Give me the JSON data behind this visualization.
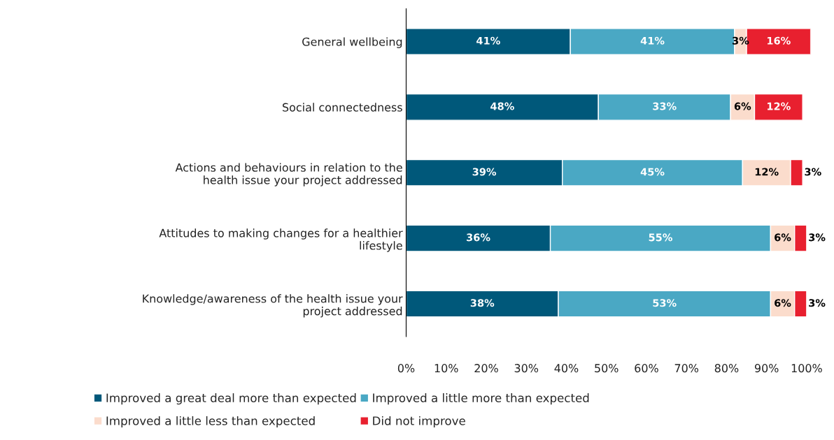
{
  "chart_data": {
    "type": "bar",
    "orientation": "horizontal",
    "stacked": true,
    "data_labels": true,
    "legend": "bottom",
    "grid": false,
    "categories": [
      "General wellbeing",
      "Social connectedness",
      "Actions and behaviours in relation to the health issue your project addressed",
      "Attitudes to making changes for a healthier lifestyle",
      "Knowledge/awareness of the health issue your project addressed"
    ],
    "series": [
      {
        "name": "Improved a great deal more than expected",
        "color": "#00587a",
        "values": [
          41,
          48,
          39,
          36,
          38
        ],
        "value_labels": [
          "41%",
          "48%",
          "39%",
          "36%",
          "38%"
        ]
      },
      {
        "name": "Improved a little more than expected",
        "color": "#4aa8c4",
        "values": [
          41,
          33,
          45,
          55,
          53
        ],
        "value_labels": [
          "41%",
          "33%",
          "45%",
          "55%",
          "53%"
        ]
      },
      {
        "name": "Improved a little less than expected",
        "color": "#fbdccc",
        "values": [
          3,
          6,
          12,
          6,
          6
        ],
        "value_labels": [
          "3%",
          "6%",
          "12%",
          "6%",
          "6%"
        ]
      },
      {
        "name": "Did not improve",
        "color": "#e8202f",
        "values": [
          16,
          12,
          3,
          3,
          3
        ],
        "value_labels": [
          "16%",
          "12%",
          "3%",
          "3%",
          "3%"
        ]
      }
    ],
    "xlim": [
      0,
      101
    ],
    "xticks": [
      {
        "value": 0,
        "label": "0%"
      },
      {
        "value": 10,
        "label": "10%"
      },
      {
        "value": 20,
        "label": "20%"
      },
      {
        "value": 30,
        "label": "30%"
      },
      {
        "value": 40,
        "label": "40%"
      },
      {
        "value": 50,
        "label": "50%"
      },
      {
        "value": 60,
        "label": "60%"
      },
      {
        "value": 70,
        "label": "70%"
      },
      {
        "value": 80,
        "label": "80%"
      },
      {
        "value": 90,
        "label": "90%"
      },
      {
        "value": 100,
        "label": "100%"
      }
    ]
  }
}
